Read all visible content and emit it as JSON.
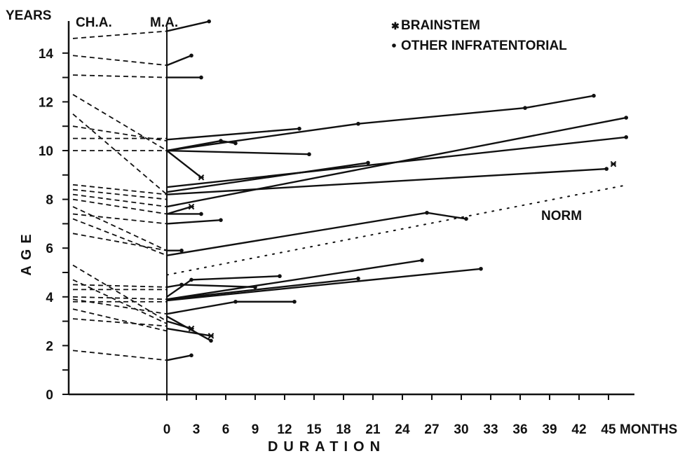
{
  "chart_data": {
    "type": "line",
    "title": "",
    "ylabel": "AGE",
    "xlabel": "DURATION",
    "y_unit": "YEARS",
    "x_unit": "MONTHS",
    "column_labels": {
      "chronological": "CH.A.",
      "mental": "M.A."
    },
    "y_ticks": [
      "0",
      "2",
      "4",
      "6",
      "8",
      "10",
      "12",
      "14"
    ],
    "x_ticks": [
      "0",
      "3",
      "6",
      "9",
      "12",
      "15",
      "18",
      "21",
      "24",
      "27",
      "30",
      "33",
      "36",
      "39",
      "42",
      "45"
    ],
    "ylim": [
      0,
      15.5
    ],
    "xlim": [
      0,
      47
    ],
    "legend": [
      {
        "marker": "brainstem",
        "label": "BRAINSTEM"
      },
      {
        "marker": "other",
        "label": "OTHER INFRATENTORIAL"
      }
    ],
    "norm_label": "NORM",
    "norm_line": {
      "x": [
        0,
        47
      ],
      "y": [
        4.9,
        8.6
      ]
    },
    "ch_to_ma": [
      {
        "ca": 14.6,
        "ma": 14.9
      },
      {
        "ca": 13.9,
        "ma": 13.5
      },
      {
        "ca": 13.1,
        "ma": 13.0
      },
      {
        "ca": 12.3,
        "ma": 10.0
      },
      {
        "ca": 11.5,
        "ma": 8.2
      },
      {
        "ca": 11.0,
        "ma": 10.4
      },
      {
        "ca": 10.5,
        "ma": 10.5
      },
      {
        "ca": 10.0,
        "ma": 10.0
      },
      {
        "ca": 8.6,
        "ma": 8.2
      },
      {
        "ca": 8.4,
        "ma": 8.0
      },
      {
        "ca": 8.2,
        "ma": 7.7
      },
      {
        "ca": 8.0,
        "ma": 7.4
      },
      {
        "ca": 7.7,
        "ma": 5.9
      },
      {
        "ca": 7.4,
        "ma": 7.0
      },
      {
        "ca": 7.2,
        "ma": 5.7
      },
      {
        "ca": 6.6,
        "ma": 5.9
      },
      {
        "ca": 5.3,
        "ma": 3.0
      },
      {
        "ca": 4.7,
        "ma": 2.9
      },
      {
        "ca": 4.5,
        "ma": 4.4
      },
      {
        "ca": 4.3,
        "ma": 4.3
      },
      {
        "ca": 4.0,
        "ma": 3.9
      },
      {
        "ca": 3.9,
        "ma": 3.3
      },
      {
        "ca": 3.8,
        "ma": 3.8
      },
      {
        "ca": 3.5,
        "ma": 2.6
      },
      {
        "ca": 3.1,
        "ma": 2.8
      },
      {
        "ca": 1.8,
        "ma": 1.4
      }
    ],
    "series": [
      {
        "marker": "other",
        "x": [
          0,
          4.3
        ],
        "y": [
          14.9,
          15.3
        ]
      },
      {
        "marker": "other",
        "x": [
          0,
          2.5
        ],
        "y": [
          13.5,
          13.9
        ]
      },
      {
        "marker": "other",
        "x": [
          0,
          3.5
        ],
        "y": [
          13.0,
          13.0
        ]
      },
      {
        "marker": "other",
        "x": [
          0,
          13.5
        ],
        "y": [
          10.45,
          10.9
        ]
      },
      {
        "marker": "other",
        "x": [
          0,
          5.5,
          7
        ],
        "y": [
          10.0,
          10.4,
          10.3
        ]
      },
      {
        "marker": "other",
        "x": [
          0,
          14.5
        ],
        "y": [
          10.0,
          9.85
        ]
      },
      {
        "marker": "brainstem",
        "x": [
          0,
          3.5
        ],
        "y": [
          10.0,
          8.9
        ]
      },
      {
        "marker": "other",
        "x": [
          0,
          19.5,
          36.5,
          43.5
        ],
        "y": [
          10.0,
          11.1,
          11.75,
          12.25
        ]
      },
      {
        "marker": "other",
        "x": [
          0,
          46.8
        ],
        "y": [
          8.5,
          10.55
        ]
      },
      {
        "marker": "other",
        "x": [
          0,
          20.5
        ],
        "y": [
          8.3,
          9.5
        ]
      },
      {
        "marker": "other",
        "x": [
          0,
          44.8
        ],
        "y": [
          8.2,
          9.25
        ]
      },
      {
        "marker": "other",
        "x": [
          0,
          46.8
        ],
        "y": [
          7.7,
          11.35
        ]
      },
      {
        "marker": "other",
        "x": [
          0,
          3.5
        ],
        "y": [
          7.4,
          7.4
        ]
      },
      {
        "marker": "brainstem",
        "x": [
          0,
          2.5
        ],
        "y": [
          7.4,
          7.7
        ]
      },
      {
        "marker": "other",
        "x": [
          0,
          5.5
        ],
        "y": [
          7.0,
          7.15
        ]
      },
      {
        "marker": "other",
        "x": [
          0,
          1.5
        ],
        "y": [
          5.9,
          5.9
        ]
      },
      {
        "marker": "other",
        "x": [
          0,
          26.5,
          30.5
        ],
        "y": [
          5.7,
          7.45,
          7.2
        ]
      },
      {
        "marker": "other",
        "x": [
          0,
          26
        ],
        "y": [
          3.9,
          5.5
        ]
      },
      {
        "marker": "other",
        "x": [
          0,
          1.5,
          9
        ],
        "y": [
          4.4,
          4.5,
          4.4
        ]
      },
      {
        "marker": "other",
        "x": [
          0,
          2.5,
          11.5
        ],
        "y": [
          4.0,
          4.7,
          4.85
        ]
      },
      {
        "marker": "other",
        "x": [
          0,
          19.5
        ],
        "y": [
          3.9,
          4.75
        ]
      },
      {
        "marker": "other",
        "x": [
          0,
          32
        ],
        "y": [
          3.85,
          5.15
        ]
      },
      {
        "marker": "other",
        "x": [
          0,
          7,
          13
        ],
        "y": [
          3.3,
          3.8,
          3.8
        ]
      },
      {
        "marker": "brainstem",
        "x": [
          0,
          2.5
        ],
        "y": [
          3.0,
          2.7
        ]
      },
      {
        "marker": "other",
        "x": [
          0,
          4.5
        ],
        "y": [
          3.2,
          2.2
        ]
      },
      {
        "marker": "brainstem",
        "x": [
          0,
          4.5
        ],
        "y": [
          2.7,
          2.4
        ]
      },
      {
        "marker": "other",
        "x": [
          0,
          2.5
        ],
        "y": [
          1.4,
          1.6
        ]
      }
    ],
    "extra_points": [
      {
        "marker": "brainstem",
        "x": 45.5,
        "y": 9.45
      }
    ]
  }
}
